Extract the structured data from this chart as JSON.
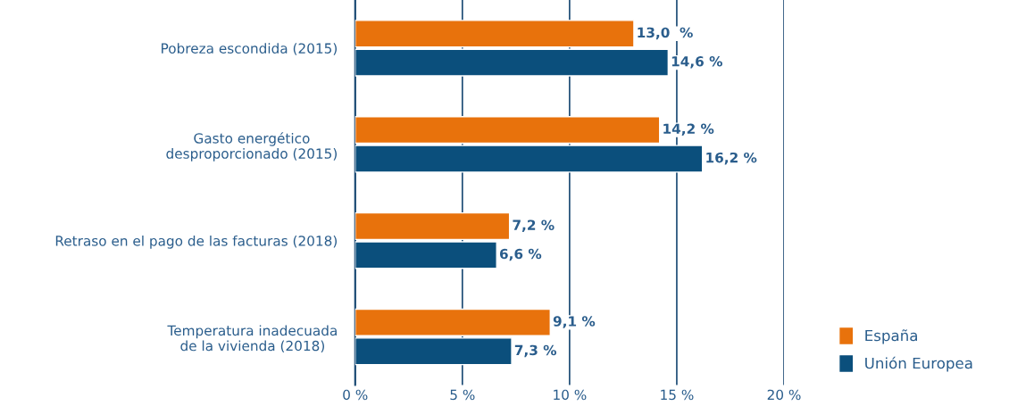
{
  "chart_data": {
    "type": "bar",
    "orientation": "horizontal",
    "categories": [
      "Pobreza escondida (2015)",
      "Gasto energético\ndesproporcionado (2015)",
      "Retraso en el pago de las facturas (2018)",
      "Temperatura inadecuada\nde la vivienda (2018)"
    ],
    "series": [
      {
        "name": "España",
        "color": "#e8720c",
        "values": [
          13.0,
          14.2,
          7.2,
          9.1
        ],
        "value_labels": [
          "13,0  %",
          "14,2 %",
          "7,2 %",
          "9,1 %"
        ]
      },
      {
        "name": "Unión Europea",
        "color": "#0b4f7c",
        "values": [
          14.6,
          16.2,
          6.6,
          7.3
        ],
        "value_labels": [
          "14,6 %",
          "16,2 %",
          "6,6 %",
          "7,3 %"
        ]
      }
    ],
    "xlim": [
      0,
      20
    ],
    "xticks": [
      {
        "value": 0,
        "label": "0 %"
      },
      {
        "value": 5,
        "label": "5 %"
      },
      {
        "value": 10,
        "label": "10 %"
      },
      {
        "value": 15,
        "label": "15 %"
      },
      {
        "value": 20,
        "label": "20 %"
      }
    ],
    "grid": "x",
    "legend": "bottom right"
  }
}
